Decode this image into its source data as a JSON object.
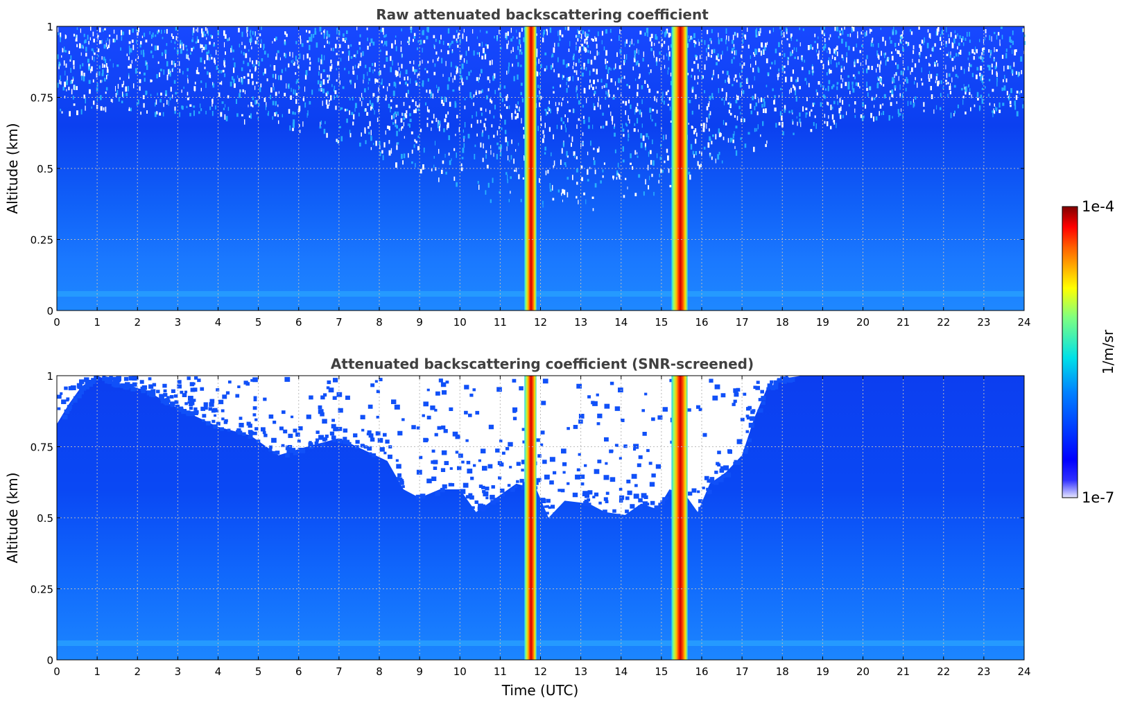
{
  "colorbar": {
    "label": "1/m/sr",
    "tick_min": "1e-7",
    "tick_max": "1e-4",
    "scale": "log",
    "range": [
      1e-07,
      0.0001
    ],
    "colormap": "jet"
  },
  "chart_data": [
    {
      "type": "heatmap",
      "title": "Raw attenuated backscattering coefficient",
      "xlabel": "",
      "ylabel": "Altitude (km)",
      "xlim": [
        0,
        24
      ],
      "ylim": [
        0,
        1
      ],
      "xticks": [
        "0",
        "1",
        "2",
        "3",
        "4",
        "5",
        "6",
        "7",
        "8",
        "9",
        "10",
        "11",
        "12",
        "13",
        "14",
        "15",
        "16",
        "17",
        "18",
        "19",
        "20",
        "21",
        "22",
        "23",
        "24"
      ],
      "yticks": [
        "0",
        "0.25",
        "0.5",
        "0.75",
        "1"
      ],
      "grid": true,
      "snr_screened": false,
      "features": [
        {
          "kind": "precipitation-band",
          "t_start": 11.6,
          "t_end": 11.9
        },
        {
          "kind": "precipitation-band",
          "t_start": 15.25,
          "t_end": 15.65
        }
      ]
    },
    {
      "type": "heatmap",
      "title": "Attenuated backscattering coefficient (SNR-screened)",
      "xlabel": "Time (UTC)",
      "ylabel": "Altitude (km)",
      "xlim": [
        0,
        24
      ],
      "ylim": [
        0,
        1
      ],
      "xticks": [
        "0",
        "1",
        "2",
        "3",
        "4",
        "5",
        "6",
        "7",
        "8",
        "9",
        "10",
        "11",
        "12",
        "13",
        "14",
        "15",
        "16",
        "17",
        "18",
        "19",
        "20",
        "21",
        "22",
        "23",
        "24"
      ],
      "yticks": [
        "0",
        "0.25",
        "0.5",
        "0.75",
        "1"
      ],
      "grid": true,
      "snr_screened": true,
      "features": [
        {
          "kind": "precipitation-band",
          "t_start": 11.6,
          "t_end": 11.9
        },
        {
          "kind": "precipitation-band",
          "t_start": 15.25,
          "t_end": 15.65
        }
      ]
    }
  ]
}
